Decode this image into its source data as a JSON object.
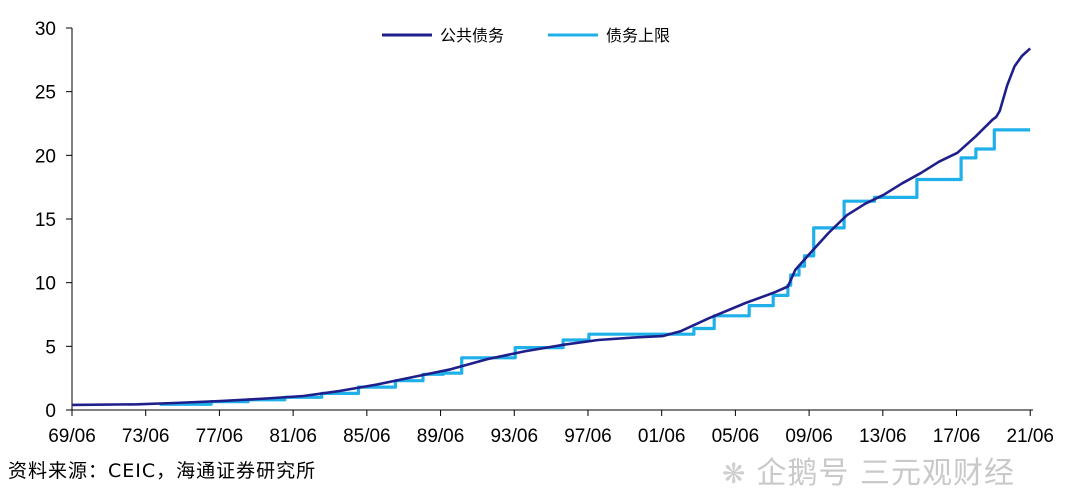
{
  "chart_data": {
    "type": "line",
    "ylim": [
      0,
      30
    ],
    "yticks": [
      0,
      5,
      10,
      15,
      20,
      25,
      30
    ],
    "xlim": [
      1969.45,
      2021.6
    ],
    "xticks": [
      {
        "value": 1969.45,
        "label": "69/06"
      },
      {
        "value": 1973.45,
        "label": "73/06"
      },
      {
        "value": 1977.45,
        "label": "77/06"
      },
      {
        "value": 1981.45,
        "label": "81/06"
      },
      {
        "value": 1985.45,
        "label": "85/06"
      },
      {
        "value": 1989.45,
        "label": "89/06"
      },
      {
        "value": 1993.45,
        "label": "93/06"
      },
      {
        "value": 1997.45,
        "label": "97/06"
      },
      {
        "value": 2001.45,
        "label": "01/06"
      },
      {
        "value": 2005.45,
        "label": "05/06"
      },
      {
        "value": 2009.45,
        "label": "09/06"
      },
      {
        "value": 2013.45,
        "label": "13/06"
      },
      {
        "value": 2017.45,
        "label": "17/06"
      },
      {
        "value": 2021.45,
        "label": "21/06"
      }
    ],
    "legend_position": "top-center",
    "series": [
      {
        "name": "公共债务",
        "color": "#1f1f8c",
        "x": [
          1969.45,
          1973.0,
          1975.0,
          1977.5,
          1980.0,
          1982.0,
          1984.0,
          1986.0,
          1988.0,
          1990.0,
          1992.0,
          1994.0,
          1996.0,
          1998.0,
          2000.0,
          2001.5,
          2002.5,
          2004.0,
          2006.0,
          2007.5,
          2008.3,
          2008.7,
          2009.5,
          2010.5,
          2011.5,
          2012.5,
          2013.5,
          2014.5,
          2015.5,
          2016.5,
          2017.5,
          2018.5,
          2019.4,
          2019.6,
          2019.8,
          2020.2,
          2020.6,
          2021.0,
          2021.45
        ],
        "y": [
          0.4,
          0.45,
          0.55,
          0.7,
          0.9,
          1.1,
          1.5,
          2.0,
          2.6,
          3.2,
          4.0,
          4.6,
          5.1,
          5.5,
          5.7,
          5.8,
          6.2,
          7.2,
          8.4,
          9.2,
          9.7,
          11.0,
          12.3,
          13.9,
          15.3,
          16.2,
          16.9,
          17.8,
          18.6,
          19.5,
          20.2,
          21.5,
          22.8,
          23.0,
          23.5,
          25.5,
          27.0,
          27.8,
          28.4
        ]
      },
      {
        "name": "债务上限",
        "color": "#1fb0ea",
        "x": [
          1974.2,
          1977.0,
          1979.0,
          1981.0,
          1983.0,
          1985.0,
          1987.0,
          1988.5,
          1989.6,
          1990.6,
          1993.5,
          1995.0,
          1996.1,
          1997.5,
          2002.2,
          2003.2,
          2004.3,
          2005.0,
          2006.2,
          2007.5,
          2008.3,
          2008.45,
          2008.9,
          2009.2,
          2009.5,
          2009.7,
          2011.0,
          2011.35,
          2012.3,
          2013.0,
          2014.5,
          2015.3,
          2017.0,
          2017.7,
          2018.5,
          2019.5,
          2021.45
        ],
        "y": [
          0.45,
          0.65,
          0.8,
          1.0,
          1.3,
          1.8,
          2.3,
          2.8,
          2.9,
          4.1,
          4.9,
          4.9,
          5.5,
          5.95,
          5.95,
          6.4,
          7.4,
          7.4,
          8.2,
          9.0,
          9.8,
          10.6,
          11.3,
          12.1,
          12.1,
          14.3,
          14.3,
          16.4,
          16.4,
          16.7,
          16.7,
          18.1,
          18.1,
          19.8,
          20.5,
          22.0,
          22.0
        ]
      }
    ]
  },
  "source": "资料来源：CEIC，海通证券研究所",
  "watermark": "企鹅号 三元观财经",
  "watermark_icon": "penguin-icon"
}
